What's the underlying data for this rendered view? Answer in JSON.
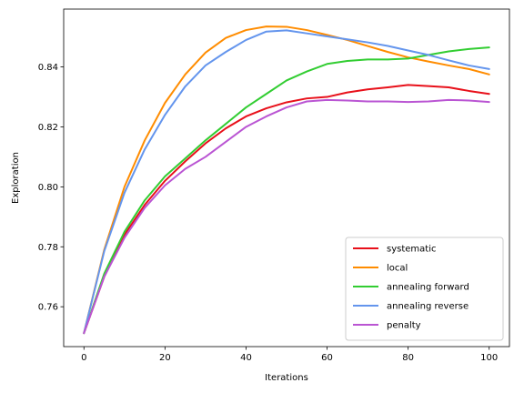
{
  "chart_data": {
    "type": "line",
    "title": "",
    "xlabel": "Iterations",
    "ylabel": "Exploration",
    "xlim": [
      -5,
      105
    ],
    "ylim": [
      0.7467,
      0.8593
    ],
    "xticks": [
      0,
      20,
      40,
      60,
      80,
      100
    ],
    "yticks": [
      0.76,
      0.78,
      0.8,
      0.82,
      0.84
    ],
    "ytick_labels": [
      "0.76",
      "0.78",
      "0.80",
      "0.82",
      "0.84"
    ],
    "grid": false,
    "legend_position": "lower-right",
    "series": [
      {
        "name": "systematic",
        "color": "#e8101a",
        "x": [
          0,
          5,
          10,
          15,
          20,
          25,
          30,
          35,
          40,
          45,
          50,
          55,
          60,
          65,
          70,
          75,
          80,
          85,
          90,
          95,
          100
        ],
        "y": [
          0.7512,
          0.77,
          0.784,
          0.794,
          0.802,
          0.8085,
          0.8145,
          0.8195,
          0.8235,
          0.8262,
          0.8282,
          0.8295,
          0.83,
          0.8315,
          0.8325,
          0.8332,
          0.834,
          0.8336,
          0.8332,
          0.832,
          0.831
        ]
      },
      {
        "name": "local",
        "color": "#ff8c00",
        "x": [
          0,
          5,
          10,
          15,
          20,
          25,
          30,
          35,
          40,
          45,
          50,
          55,
          60,
          65,
          70,
          75,
          80,
          85,
          90,
          95,
          100
        ],
        "y": [
          0.7512,
          0.779,
          0.8,
          0.8155,
          0.828,
          0.8375,
          0.8448,
          0.8497,
          0.8523,
          0.8535,
          0.8534,
          0.8523,
          0.8507,
          0.849,
          0.847,
          0.845,
          0.8432,
          0.8418,
          0.8405,
          0.8393,
          0.8375
        ]
      },
      {
        "name": "annealing forward",
        "color": "#32cd32",
        "x": [
          0,
          5,
          10,
          15,
          20,
          25,
          30,
          35,
          40,
          45,
          50,
          55,
          60,
          65,
          70,
          75,
          80,
          85,
          90,
          95,
          100
        ],
        "y": [
          0.7512,
          0.771,
          0.785,
          0.7955,
          0.8035,
          0.8095,
          0.8155,
          0.821,
          0.8265,
          0.831,
          0.8355,
          0.8385,
          0.841,
          0.842,
          0.8425,
          0.8425,
          0.8428,
          0.844,
          0.8452,
          0.846,
          0.8465
        ]
      },
      {
        "name": "annealing reverse",
        "color": "#6495ed",
        "x": [
          0,
          5,
          10,
          15,
          20,
          25,
          30,
          35,
          40,
          45,
          50,
          55,
          60,
          65,
          70,
          75,
          80,
          85,
          90,
          95,
          100
        ],
        "y": [
          0.7512,
          0.7785,
          0.798,
          0.8125,
          0.824,
          0.8335,
          0.8405,
          0.845,
          0.849,
          0.8518,
          0.8522,
          0.8512,
          0.8502,
          0.8492,
          0.8482,
          0.847,
          0.8455,
          0.844,
          0.8422,
          0.8405,
          0.8393
        ]
      },
      {
        "name": "penalty",
        "color": "#ba55d3",
        "x": [
          0,
          5,
          10,
          15,
          20,
          25,
          30,
          35,
          40,
          45,
          50,
          55,
          60,
          65,
          70,
          75,
          80,
          85,
          90,
          95,
          100
        ],
        "y": [
          0.7512,
          0.77,
          0.783,
          0.793,
          0.8005,
          0.806,
          0.81,
          0.815,
          0.82,
          0.8235,
          0.8265,
          0.8285,
          0.829,
          0.8288,
          0.8285,
          0.8285,
          0.8283,
          0.8285,
          0.829,
          0.8288,
          0.8283
        ]
      }
    ]
  }
}
